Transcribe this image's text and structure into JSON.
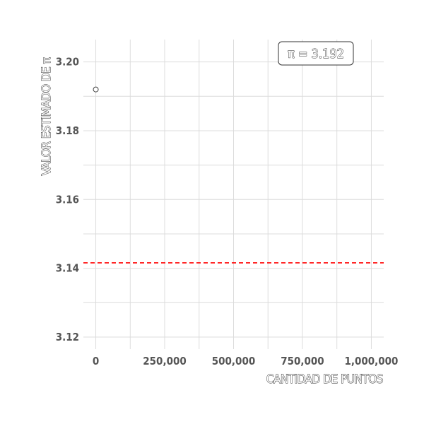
{
  "chart_data": {
    "type": "scatter",
    "xlabel": "CANTIDAD DE PUNTOS",
    "ylabel": "VALOR ESTIMADO DE π",
    "xlim": [
      -45000,
      1045000
    ],
    "ylim": [
      3.1165,
      3.2065
    ],
    "x_ticks": [
      0,
      250000,
      500000,
      750000,
      1000000
    ],
    "x_tick_labels": [
      "0",
      "250,000",
      "500,000",
      "750,000",
      "1,000,000"
    ],
    "y_ticks": [
      3.12,
      3.14,
      3.16,
      3.18,
      3.2
    ],
    "y_tick_labels": [
      "3.12",
      "3.14",
      "3.16",
      "3.18",
      "3.20"
    ],
    "points": [
      {
        "x": 0,
        "y": 3.192
      }
    ],
    "reference_line": {
      "y": 3.14159,
      "style": "dashed",
      "color": "#ff0000"
    },
    "annotation": "π = 3.192",
    "grid": true,
    "colors": {
      "grid": "#dcdcdc",
      "point": "#444444",
      "reference": "#ff0000",
      "text": "#555555"
    }
  }
}
